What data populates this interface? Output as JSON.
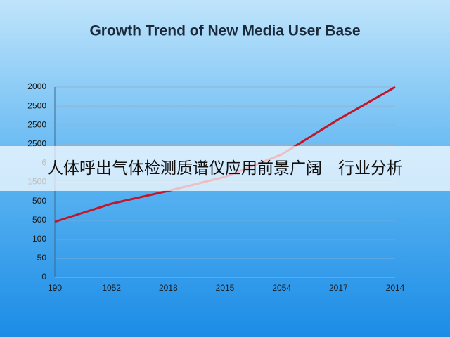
{
  "chart_data": {
    "type": "line",
    "title": "Growth Trend of New Media User Base",
    "categories": [
      "190",
      "1052",
      "2018",
      "2015",
      "2054",
      "2017",
      "2014"
    ],
    "series": [
      {
        "name": null,
        "color": "#c0182a",
        "values": [
          2.92,
          3.87,
          4.54,
          5.28,
          6.46,
          8.3,
          10
        ]
      }
    ],
    "ylim": [
      0,
      10
    ],
    "yticks": [
      {
        "value": 0,
        "label": "0"
      },
      {
        "value": 1,
        "label": "50"
      },
      {
        "value": 2,
        "label": "100"
      },
      {
        "value": 3,
        "label": "500"
      },
      {
        "value": 4,
        "label": "500"
      },
      {
        "value": 5,
        "label": "1500"
      },
      6,
      {
        "value": 7,
        "label": "2500"
      },
      {
        "value": 8,
        "label": "2500"
      },
      {
        "value": 9,
        "label": "2500"
      },
      {
        "value": 10,
        "label": "2000"
      }
    ],
    "grid": true
  },
  "banner": "人体呼出气体检测质谱仪应用前景广阔｜行业分析"
}
